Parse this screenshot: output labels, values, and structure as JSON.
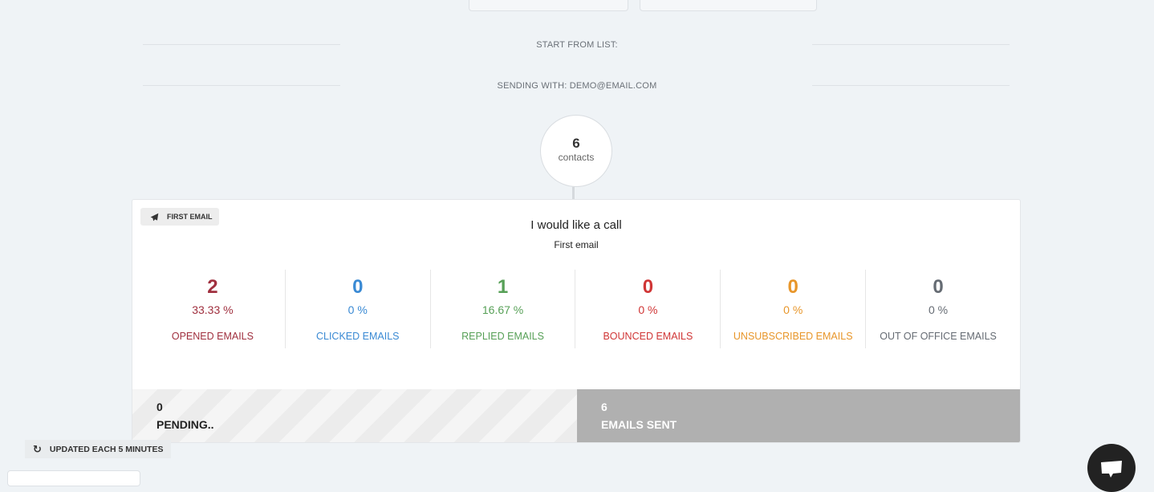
{
  "list": {
    "start_label": "START FROM LIST:",
    "sending_label": "SENDING WITH: DEMO@EMAIL.COM"
  },
  "contacts": {
    "count": "6",
    "label": "contacts"
  },
  "step": {
    "badge": "FIRST EMAIL",
    "subject": "I would like a call",
    "name": "First email",
    "stats": [
      {
        "value": "2",
        "percent": "33.33 %",
        "label": "OPENED EMAILS",
        "color": "#a0303f"
      },
      {
        "value": "0",
        "percent": "0 %",
        "label": "CLICKED EMAILS",
        "color": "#3a8ad4"
      },
      {
        "value": "1",
        "percent": "16.67 %",
        "label": "REPLIED EMAILS",
        "color": "#57a057"
      },
      {
        "value": "0",
        "percent": "0 %",
        "label": "BOUNCED EMAILS",
        "color": "#d03636"
      },
      {
        "value": "0",
        "percent": "0 %",
        "label": "UNSUBSCRIBED EMAILS",
        "color": "#e8962a"
      },
      {
        "value": "0",
        "percent": "0 %",
        "label": "OUT OF OFFICE EMAILS",
        "color": "#656b73"
      }
    ],
    "pending": {
      "count": "0",
      "label": "PENDING.."
    },
    "sent": {
      "count": "6",
      "label": "EMAILS SENT"
    }
  },
  "footer": {
    "updated": "UPDATED EACH 5 MINUTES"
  }
}
